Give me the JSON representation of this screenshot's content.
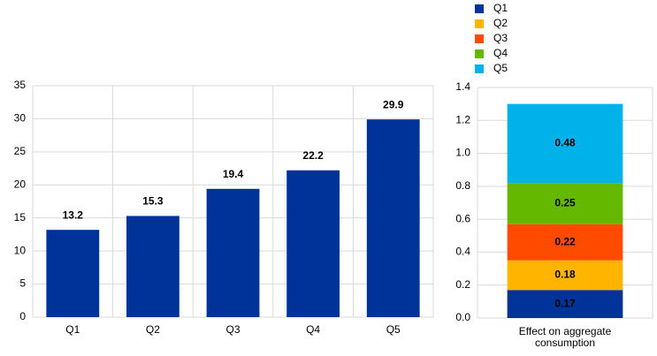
{
  "chart_data": [
    {
      "type": "bar",
      "categories": [
        "Q1",
        "Q2",
        "Q3",
        "Q4",
        "Q5"
      ],
      "values": [
        13.2,
        15.3,
        19.4,
        22.2,
        29.9
      ],
      "color": "#003399",
      "ylim": [
        0,
        35
      ],
      "yticks": [
        0,
        5,
        10,
        15,
        20,
        25,
        30,
        35
      ],
      "grid": true
    },
    {
      "type": "stacked_bar",
      "categories": [
        "Effect on aggregate consumption"
      ],
      "series": [
        {
          "name": "Q1",
          "color": "#003399",
          "values": [
            0.17
          ]
        },
        {
          "name": "Q2",
          "color": "#ffb400",
          "values": [
            0.18
          ]
        },
        {
          "name": "Q3",
          "color": "#ff4b00",
          "values": [
            0.22
          ]
        },
        {
          "name": "Q4",
          "color": "#65b800",
          "values": [
            0.25
          ]
        },
        {
          "name": "Q5",
          "color": "#00b1ea",
          "values": [
            0.48
          ]
        }
      ],
      "ylim": [
        0,
        1.4
      ],
      "yticks": [
        {
          "value": 0,
          "label": "0.0"
        },
        0.2,
        0.4,
        0.6,
        0.8,
        {
          "value": 1,
          "label": "1.0"
        },
        1.2,
        1.4
      ],
      "grid": true,
      "legend": "top"
    }
  ]
}
